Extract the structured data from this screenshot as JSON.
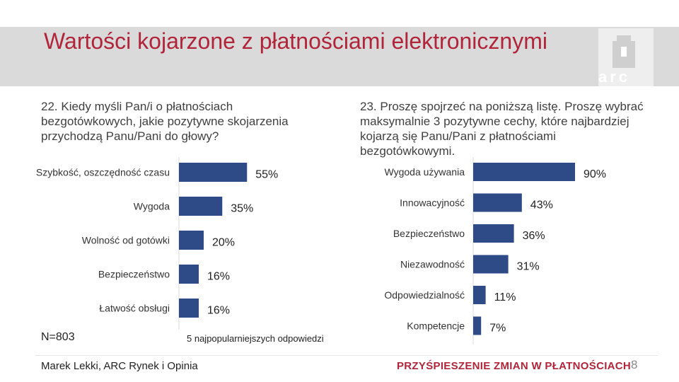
{
  "slide": {
    "title": "Wartości kojarzone z płatnościami elektronicznymi",
    "question_left": "22. Kiedy myśli Pan/i o płatnościach bezgotówkowych, jakie pozytywne skojarzenia przychodzą Panu/Pani do głowy?",
    "question_right": "23. Proszę spojrzeć na poniższą listę. Proszę wybrać maksymalnie 3 pozytywne cechy, które najbardziej kojarzą się Panu/Pani z płatnościami bezgotówkowymi.",
    "note": "5 najpopularniejszych odpowiedzi",
    "sample": "N=803",
    "footer_author": "Marek Lekki, ARC Rynek i Opinia",
    "footer_slogan": "PRZYŚPIESZENIE ZMIAN W PŁATNOŚCIACH",
    "page_number": "8",
    "logo_text": "arc"
  },
  "colors": {
    "bar": "#2e4a87",
    "title": "#b0253a",
    "header_band": "#dadada"
  },
  "chart_data": [
    {
      "type": "bar",
      "orientation": "horizontal",
      "categories": [
        "Szybkość, oszczędność czasu",
        "Wygoda",
        "Wolność od gotówki",
        "Bezpieczeństwo",
        "Łatwość obsługi"
      ],
      "values": [
        55,
        35,
        20,
        16,
        16
      ],
      "labels": [
        "55%",
        "35%",
        "20%",
        "16%",
        "16%"
      ],
      "xlim": [
        0,
        100
      ]
    },
    {
      "type": "bar",
      "orientation": "horizontal",
      "categories": [
        "Wygoda używania",
        "Innowacyjność",
        "Bezpieczeństwo",
        "Niezawodność",
        "Odpowiedzialność",
        "Kompetencje"
      ],
      "values": [
        90,
        43,
        36,
        31,
        11,
        7
      ],
      "labels": [
        "90%",
        "43%",
        "36%",
        "31%",
        "11%",
        "7%"
      ],
      "xlim": [
        0,
        100
      ]
    }
  ]
}
